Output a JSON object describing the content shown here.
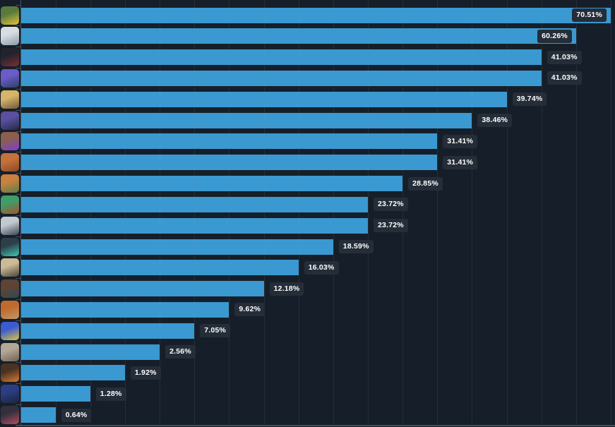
{
  "colors": {
    "background": "#161F29",
    "bar": "#3A99D1",
    "label_box": "#242D38",
    "label_text": "#FFFFFF",
    "gridline": "rgba(125,145,165,0.13)",
    "axis": "#415060"
  },
  "chart_data": {
    "type": "bar",
    "orientation": "horizontal",
    "title": "",
    "xlabel": "",
    "ylabel": "",
    "value_suffix": "%",
    "legend": "none",
    "grid": "vertical",
    "x_gridline_count": 17,
    "bar_length_mode": "dense-rank-of-value",
    "value_labels_visible": true,
    "rows": [
      {
        "category": "agent-1",
        "value": 70.51,
        "label": "70.51%",
        "avatar_description": "green beanie, glasses, yellow jacket",
        "avatar_colors": [
          "#5a7a3c",
          "#e3c23d"
        ]
      },
      {
        "category": "agent-2",
        "value": 60.26,
        "label": "60.26%",
        "avatar_description": "white hair",
        "avatar_colors": [
          "#d8dde2",
          "#8a9aa8"
        ]
      },
      {
        "category": "agent-3",
        "value": 41.03,
        "label": "41.03%",
        "avatar_description": "dark hair, red accents",
        "avatar_colors": [
          "#23232d",
          "#7d2f35"
        ]
      },
      {
        "category": "agent-4",
        "value": 41.03,
        "label": "41.03%",
        "avatar_description": "purple masked face",
        "avatar_colors": [
          "#6b5cc8",
          "#2d3f66"
        ]
      },
      {
        "category": "agent-5",
        "value": 39.74,
        "label": "39.74%",
        "avatar_description": "blond hair, tan skin",
        "avatar_colors": [
          "#d6b468",
          "#6e5a3c"
        ]
      },
      {
        "category": "agent-6",
        "value": 38.46,
        "label": "38.46%",
        "avatar_description": "purple hood",
        "avatar_colors": [
          "#5b4fa0",
          "#262a48"
        ]
      },
      {
        "category": "agent-7",
        "value": 31.41,
        "label": "31.41%",
        "avatar_description": "dark skin, purple glow",
        "avatar_colors": [
          "#8a5f4e",
          "#7b3fd1"
        ]
      },
      {
        "category": "agent-8",
        "value": 31.41,
        "label": "31.41%",
        "avatar_description": "orange hair and beard",
        "avatar_colors": [
          "#c5713a",
          "#8a4a28"
        ]
      },
      {
        "category": "agent-9",
        "value": 28.85,
        "label": "28.85%",
        "avatar_description": "orange hair, green top",
        "avatar_colors": [
          "#c8813f",
          "#5d7c4a"
        ]
      },
      {
        "category": "agent-10",
        "value": 23.72,
        "label": "23.72%",
        "avatar_description": "green headband, auburn hair",
        "avatar_colors": [
          "#3f9e68",
          "#a8502f"
        ]
      },
      {
        "category": "agent-11",
        "value": 23.72,
        "label": "23.72%",
        "avatar_description": "white wild hair, dark coat",
        "avatar_colors": [
          "#c3c9d1",
          "#3c4654"
        ]
      },
      {
        "category": "agent-12",
        "value": 18.59,
        "label": "18.59%",
        "avatar_description": "black ponytail, green earring",
        "avatar_colors": [
          "#2e3e48",
          "#3ec8b4"
        ]
      },
      {
        "category": "agent-13",
        "value": 16.03,
        "label": "16.03%",
        "avatar_description": "wide-brim beige hat",
        "avatar_colors": [
          "#cdbb97",
          "#4a4438"
        ]
      },
      {
        "category": "agent-14",
        "value": 12.18,
        "label": "12.18%",
        "avatar_description": "dark beard, teal accents",
        "avatar_colors": [
          "#5f4334",
          "#2e4a52"
        ]
      },
      {
        "category": "agent-15",
        "value": 9.62,
        "label": "9.62%",
        "avatar_description": "orange beret, blond beard",
        "avatar_colors": [
          "#c06a2e",
          "#bf9a68"
        ]
      },
      {
        "category": "agent-16",
        "value": 7.05,
        "label": "7.05%",
        "avatar_description": "blue hair, yellow accents",
        "avatar_colors": [
          "#3d5bd0",
          "#d9c63e"
        ]
      },
      {
        "category": "agent-17",
        "value": 2.56,
        "label": "2.56%",
        "avatar_description": "gray hair, tan skin",
        "avatar_colors": [
          "#b3a895",
          "#6e6252"
        ]
      },
      {
        "category": "agent-18",
        "value": 1.92,
        "label": "1.92%",
        "avatar_description": "dark skin, orange jacket",
        "avatar_colors": [
          "#4a3223",
          "#d97a2e"
        ]
      },
      {
        "category": "agent-19",
        "value": 1.28,
        "label": "1.28%",
        "avatar_description": "dark blue spiky hair",
        "avatar_colors": [
          "#2c3d86",
          "#1d2438"
        ]
      },
      {
        "category": "agent-20",
        "value": 0.64,
        "label": "0.64%",
        "avatar_description": "dark hair, pink accents",
        "avatar_colors": [
          "#33303c",
          "#b44a64"
        ]
      }
    ]
  }
}
